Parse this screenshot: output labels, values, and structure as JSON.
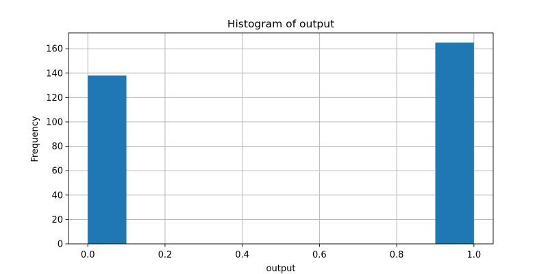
{
  "chart_data": {
    "type": "bar",
    "title": "Histogram of output",
    "xlabel": "output",
    "ylabel": "Frequency",
    "bins": [
      {
        "x0": 0.0,
        "x1": 0.1,
        "value": 138
      },
      {
        "x0": 0.9,
        "x1": 1.0,
        "value": 165
      }
    ],
    "xlim": [
      -0.05,
      1.05
    ],
    "ylim": [
      0,
      173
    ],
    "xticks": [
      0.0,
      0.2,
      0.4,
      0.6,
      0.8,
      1.0
    ],
    "xtick_labels": [
      "0.0",
      "0.2",
      "0.4",
      "0.6",
      "0.8",
      "1.0"
    ],
    "yticks": [
      0,
      20,
      40,
      60,
      80,
      100,
      120,
      140,
      160
    ],
    "ytick_labels": [
      "0",
      "20",
      "40",
      "60",
      "80",
      "100",
      "120",
      "140",
      "160"
    ],
    "grid": true,
    "bar_color": "#1f77b4"
  }
}
